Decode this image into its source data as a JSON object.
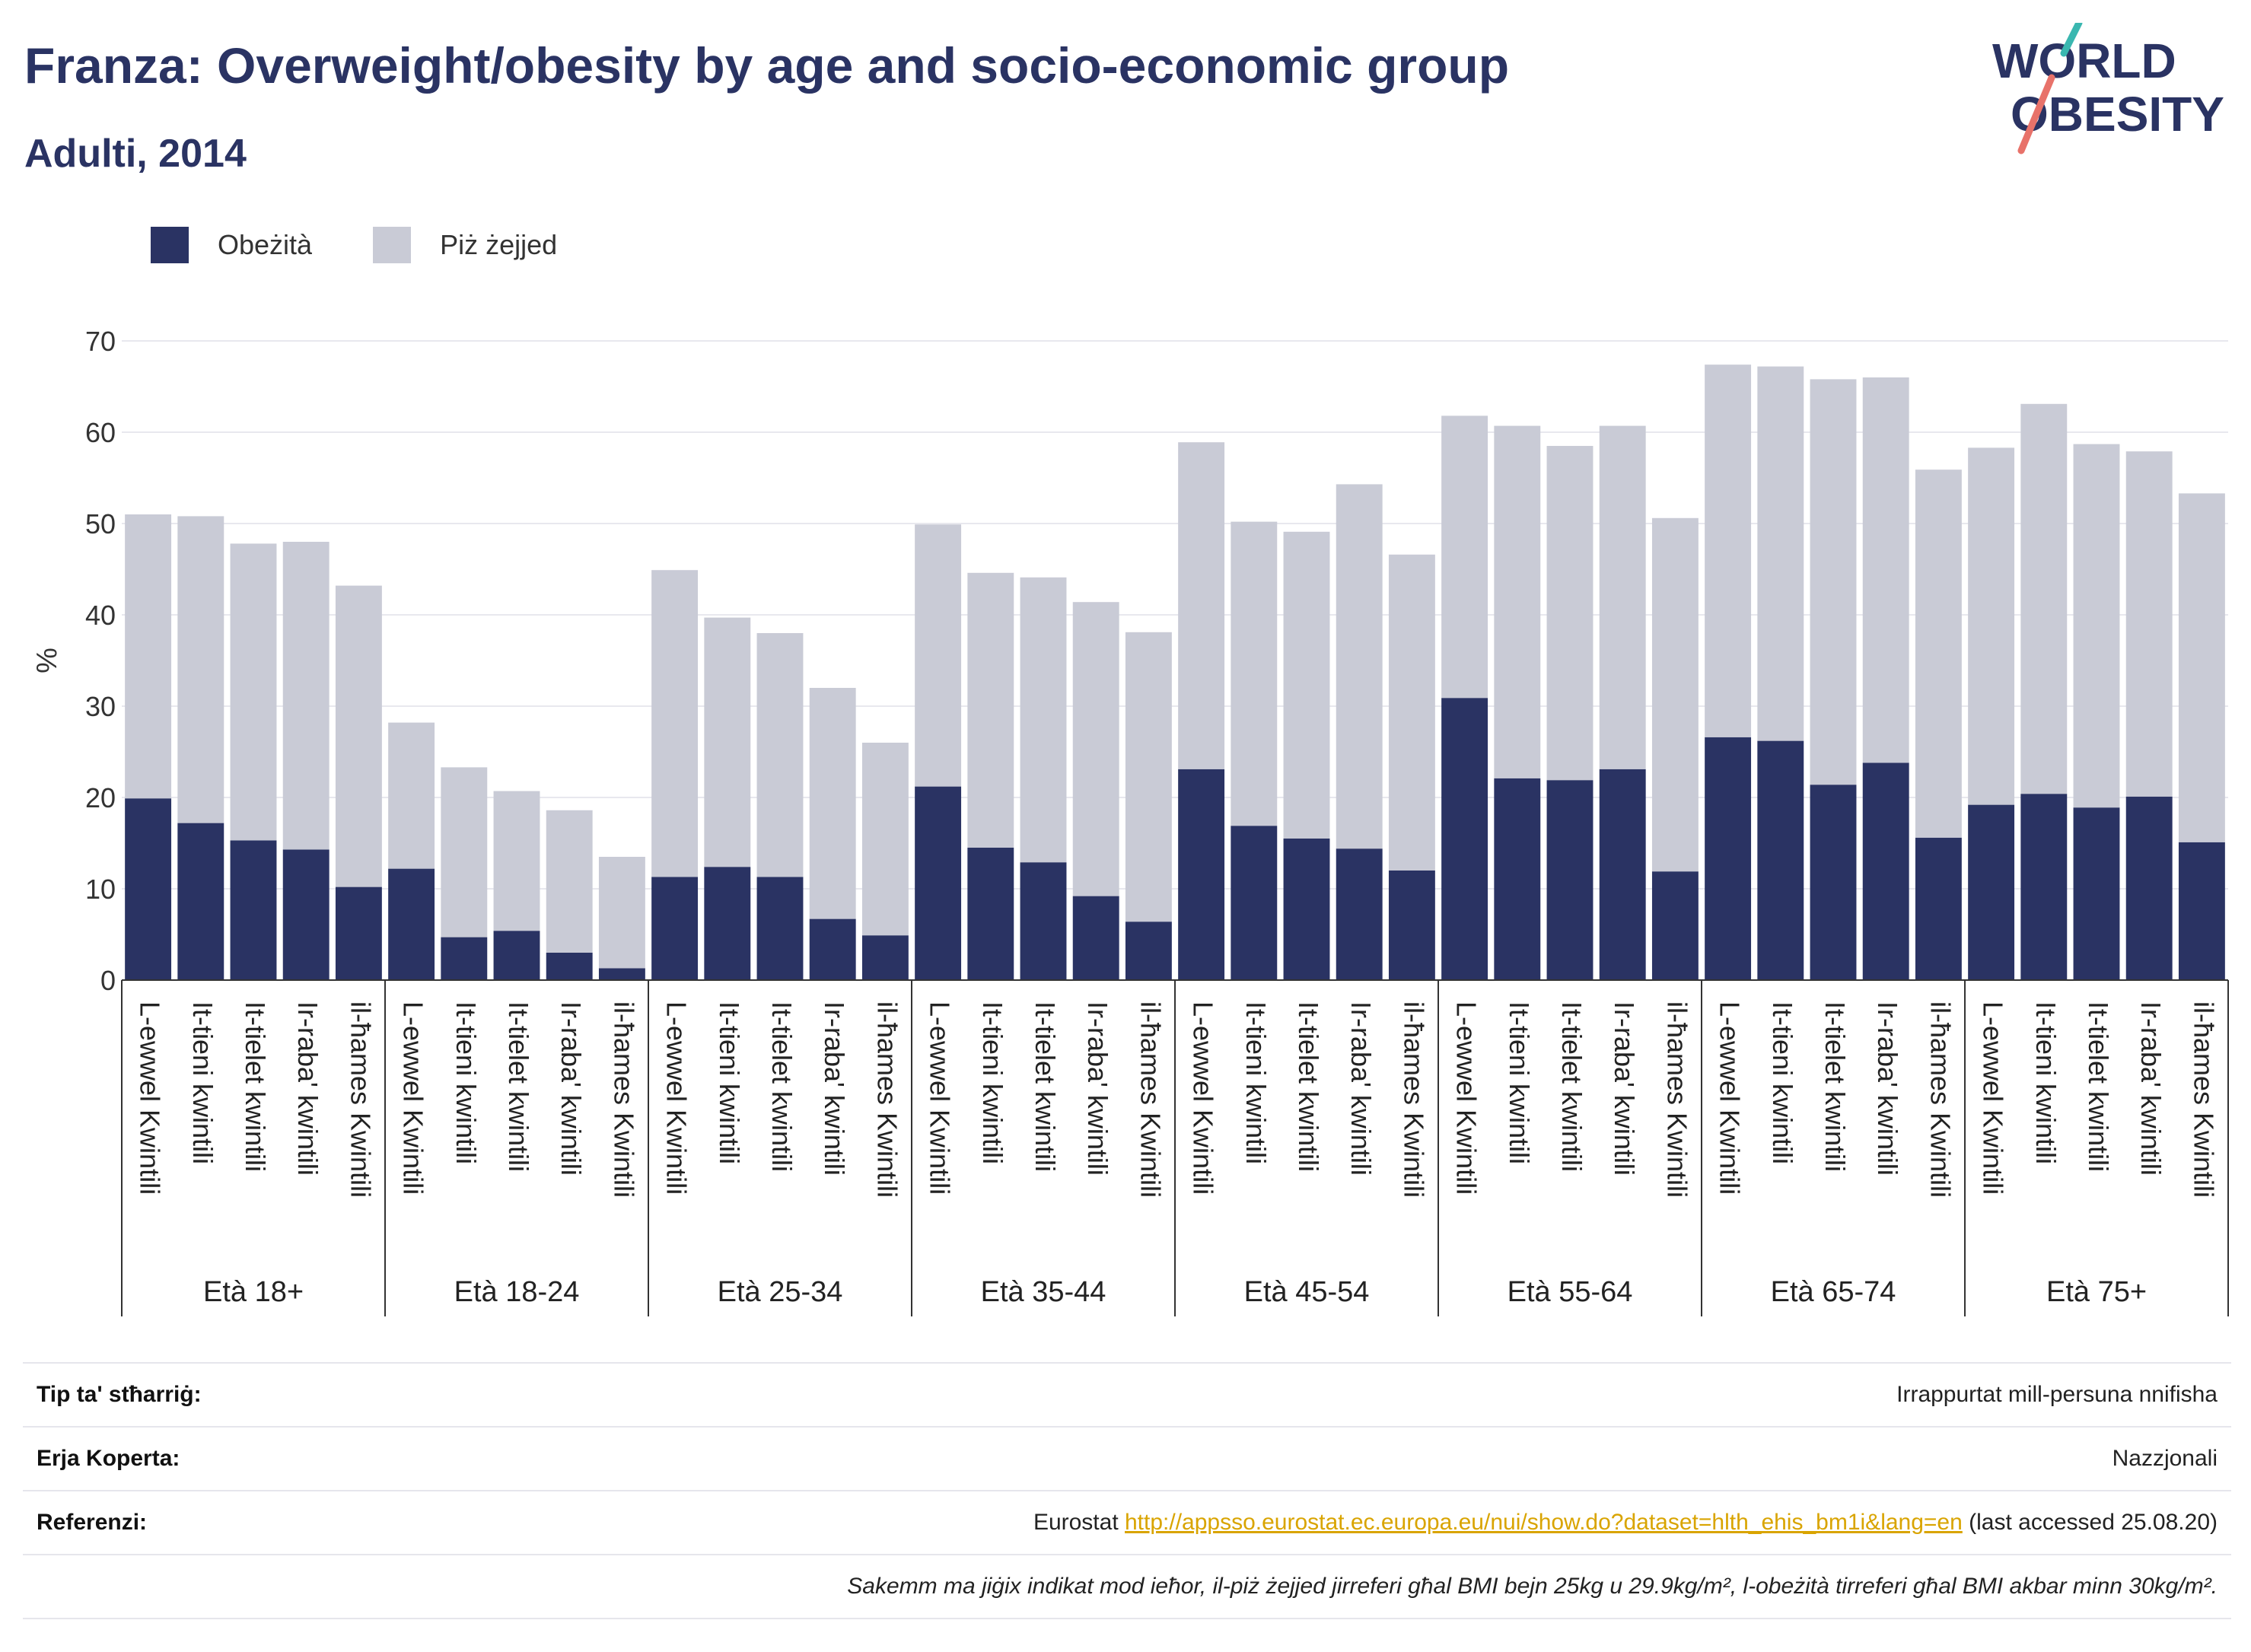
{
  "header": {
    "title": "Franza: Overweight/obesity by age and socio-economic group",
    "subtitle": "Adulti, 2014"
  },
  "logo": {
    "line1": "WORLD",
    "line2": "OBESITY"
  },
  "legend": [
    {
      "label": "Obeżità",
      "color": "#2a3363"
    },
    {
      "label": "Piż żejjed",
      "color": "#c9cbd6"
    }
  ],
  "chart_data": {
    "type": "bar",
    "stacked": true,
    "ylabel": "%",
    "xlabel": "",
    "ylim": [
      0,
      70
    ],
    "yticks": [
      0,
      10,
      20,
      30,
      40,
      50,
      60,
      70
    ],
    "grid": true,
    "legend_position": "top-left",
    "group_labels": [
      "Età 18+",
      "Età 18-24",
      "Età 25-34",
      "Età 35-44",
      "Età 45-54",
      "Età 55-64",
      "Età 65-74",
      "Età 75+"
    ],
    "categories": [
      "L-ewwel Kwintili",
      "It-tieni kwintili",
      "It-tielet kwintili",
      "Ir-raba' kwintili",
      "il-ħames Kwintili"
    ],
    "series": [
      {
        "name": "Obeżità",
        "color": "#2a3363",
        "values": [
          [
            19.9,
            17.2,
            15.3,
            14.3,
            10.2
          ],
          [
            12.2,
            4.7,
            5.4,
            3.0,
            1.3
          ],
          [
            11.3,
            12.4,
            11.3,
            6.7,
            4.9
          ],
          [
            21.2,
            14.5,
            12.9,
            9.2,
            6.4
          ],
          [
            23.1,
            16.9,
            15.5,
            14.4,
            12.0
          ],
          [
            30.9,
            22.1,
            21.9,
            23.1,
            11.9
          ],
          [
            26.6,
            26.2,
            21.4,
            23.8,
            15.6
          ],
          [
            19.2,
            20.4,
            18.9,
            20.1,
            15.1
          ]
        ]
      },
      {
        "name": "Piż żejjed",
        "color": "#c9cbd6",
        "values": [
          [
            31.1,
            33.6,
            32.5,
            33.7,
            33.0
          ],
          [
            16.0,
            18.6,
            15.3,
            15.6,
            12.2
          ],
          [
            33.6,
            27.3,
            26.7,
            25.3,
            21.1
          ],
          [
            28.7,
            30.1,
            31.2,
            32.2,
            31.7
          ],
          [
            35.8,
            33.3,
            33.6,
            39.9,
            34.6
          ],
          [
            30.9,
            38.6,
            36.6,
            37.6,
            38.7
          ],
          [
            40.8,
            41.0,
            44.4,
            42.2,
            40.3
          ],
          [
            39.1,
            42.7,
            39.8,
            37.8,
            38.2
          ]
        ]
      }
    ]
  },
  "footer": {
    "rows": [
      {
        "label": "Tip ta' stħarriġ:",
        "value": "Irrappurtat mill-persuna nnifisha"
      },
      {
        "label": "Erja Koperta:",
        "value": "Nazzjonali"
      }
    ],
    "reference": {
      "label": "Referenzi:",
      "prefix": "Eurostat ",
      "link": "http://appsso.eurostat.ec.europa.eu/nui/show.do?dataset=hlth_ehis_bm1i&lang=en",
      "suffix": " (last accessed 25.08.20)"
    },
    "note": "Sakemm ma jiġix indikat mod ieħor, il-piż żejjed jirreferi għal BMI bejn 25kg u 29.9kg/m², l-obeżità tirreferi għal BMI akbar minn 30kg/m²."
  }
}
